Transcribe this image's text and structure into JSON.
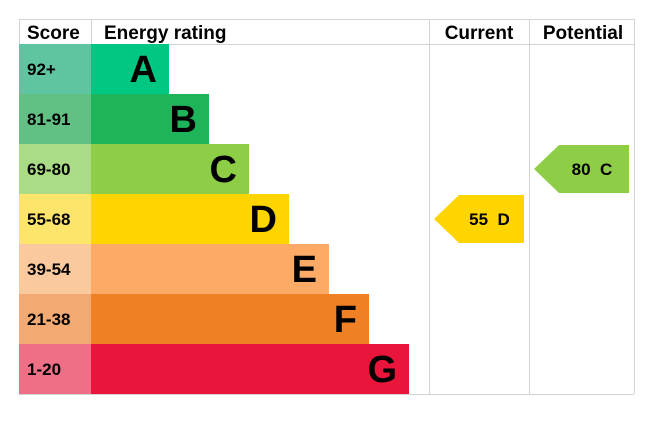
{
  "chart_data": {
    "type": "bar",
    "headers": {
      "score": "Score",
      "energy_rating": "Energy rating",
      "current": "Current",
      "potential": "Potential"
    },
    "bands": [
      {
        "letter": "A",
        "range": "92+",
        "bar_color": "#00c781",
        "score_color": "#5fc5a1"
      },
      {
        "letter": "B",
        "range": "81-91",
        "bar_color": "#1db45a",
        "score_color": "#62c084"
      },
      {
        "letter": "C",
        "range": "69-80",
        "bar_color": "#8dce46",
        "score_color": "#a9dc84"
      },
      {
        "letter": "D",
        "range": "55-68",
        "bar_color": "#ffd500",
        "score_color": "#fde46a"
      },
      {
        "letter": "E",
        "range": "39-54",
        "bar_color": "#fcaa65",
        "score_color": "#fbc99e"
      },
      {
        "letter": "F",
        "range": "21-38",
        "bar_color": "#ef8023",
        "score_color": "#f2aa72"
      },
      {
        "letter": "G",
        "range": "1-20",
        "bar_color": "#e9153b",
        "score_color": "#ef6f86"
      }
    ],
    "current": {
      "value": 55,
      "band": "D",
      "label": "55  D",
      "color": "#ffd500"
    },
    "potential": {
      "value": 80,
      "band": "C",
      "label": "80  C",
      "color": "#8dce46"
    }
  }
}
